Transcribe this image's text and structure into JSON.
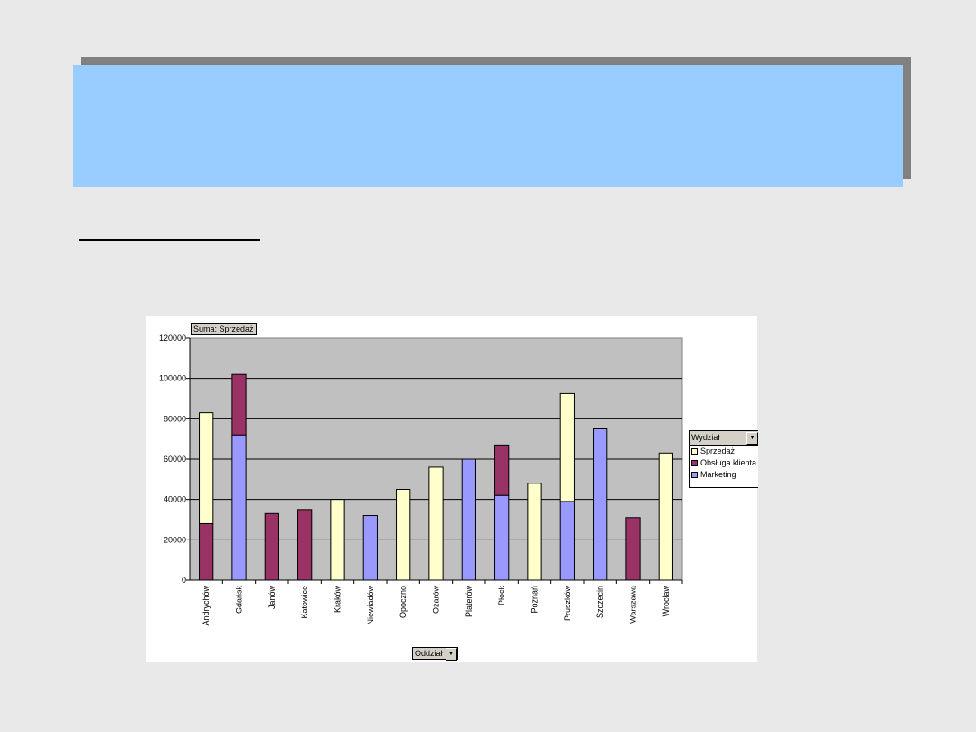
{
  "slide": {
    "title": ""
  },
  "chart_data": {
    "type": "bar",
    "stacked": true,
    "data_field_label": "Suma: Sprzedaż",
    "legend_title": "Wydział",
    "category_field_label": "Oddział",
    "legend_position": "right",
    "grid": true,
    "ylim": [
      0,
      120000
    ],
    "yticks": [
      "0",
      "20000",
      "40000",
      "60000",
      "80000",
      "100000",
      "120000"
    ],
    "categories": [
      "Andrychów",
      "Gdańsk",
      "Janów",
      "Katowice",
      "Kraków",
      "Niewiadów",
      "Opoczno",
      "Ożarów",
      "Platerów",
      "Płock",
      "Poznań",
      "Pruszków",
      "Szczecin",
      "Warszawa",
      "Wrocław"
    ],
    "series": [
      {
        "name": "Marketing",
        "color": "#9999ff",
        "values": [
          0,
          72000,
          0,
          0,
          0,
          32000,
          0,
          0,
          60000,
          42000,
          0,
          39000,
          75000,
          0,
          0
        ]
      },
      {
        "name": "Obsługa klienta",
        "color": "#993366",
        "values": [
          28000,
          30000,
          33000,
          35000,
          0,
          0,
          0,
          0,
          0,
          25000,
          0,
          0,
          0,
          31000,
          0
        ]
      },
      {
        "name": "Sprzedaż",
        "color": "#ffffcc",
        "values": [
          55000,
          0,
          0,
          0,
          40000,
          0,
          45000,
          56000,
          0,
          0,
          48000,
          53500,
          0,
          0,
          63000
        ]
      }
    ],
    "legend_order": [
      "Sprzedaż",
      "Obsługa klienta",
      "Marketing"
    ]
  }
}
